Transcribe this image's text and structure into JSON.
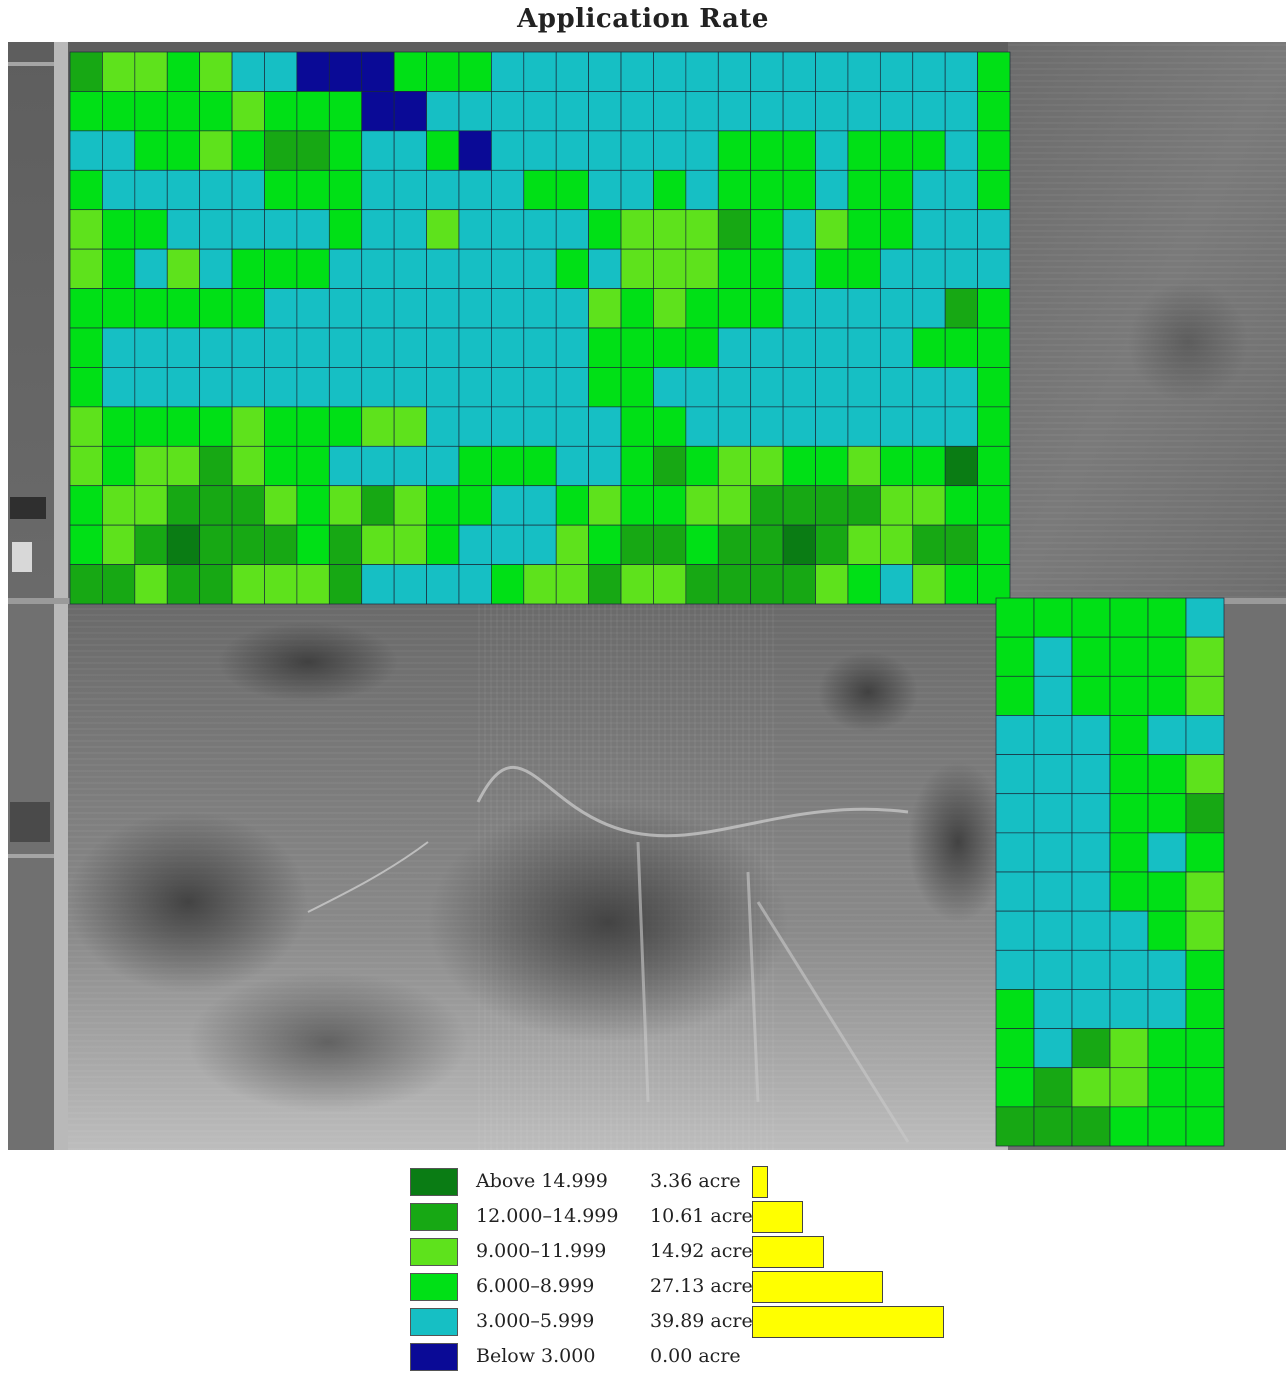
{
  "title": "Application Rate",
  "colors": {
    "above_14999": "#0a7c14",
    "r12_14999": "#17a814",
    "r9_11999": "#5ee21c",
    "r6_8999": "#00e016",
    "r3_5999": "#16bfc4",
    "below_3000": "#0a0a96",
    "bar": "#ffff00"
  },
  "map": {
    "field_a_grid": [
      "54434221113332222222222222223",
      "33333433311222222222222222223",
      "22334355322312222222333233323",
      "32222233322222332232333233223",
      "43322222322422223444532433222",
      "43242333222222232444332332222",
      "33333322222222224343332222253",
      "32222222222222223333222222333",
      "32222222222222223322222222223",
      "43333433344222222332222222223",
      "43445433222233322353443343363",
      "34455543454332234334455554433",
      "34565553544322243553556544553",
      "55455444522223445445555432433"
    ],
    "field_b_grid": [
      "333332",
      "323334",
      "323334",
      "222322",
      "222334",
      "222335",
      "222323",
      "222334",
      "222234",
      "222223",
      "322223",
      "325433",
      "354433",
      "555333"
    ]
  },
  "legend": {
    "items": [
      {
        "range": "Above 14.999",
        "area": "3.36 acre",
        "acres": 3.36,
        "color_key": "above_14999"
      },
      {
        "range": "12.000–14.999",
        "area": "10.61 acre",
        "acres": 10.61,
        "color_key": "r12_14999"
      },
      {
        "range": "9.000–11.999",
        "area": "14.92 acre",
        "acres": 14.92,
        "color_key": "r9_11999"
      },
      {
        "range": "6.000–8.999",
        "area": "27.13 acre",
        "acres": 27.13,
        "color_key": "r6_8999"
      },
      {
        "range": "3.000–5.999",
        "area": "39.89 acre",
        "acres": 39.89,
        "color_key": "r3_5999"
      },
      {
        "range": "Below 3.000",
        "area": "0.00 acre",
        "acres": 0.0,
        "color_key": "below_3000"
      }
    ]
  }
}
